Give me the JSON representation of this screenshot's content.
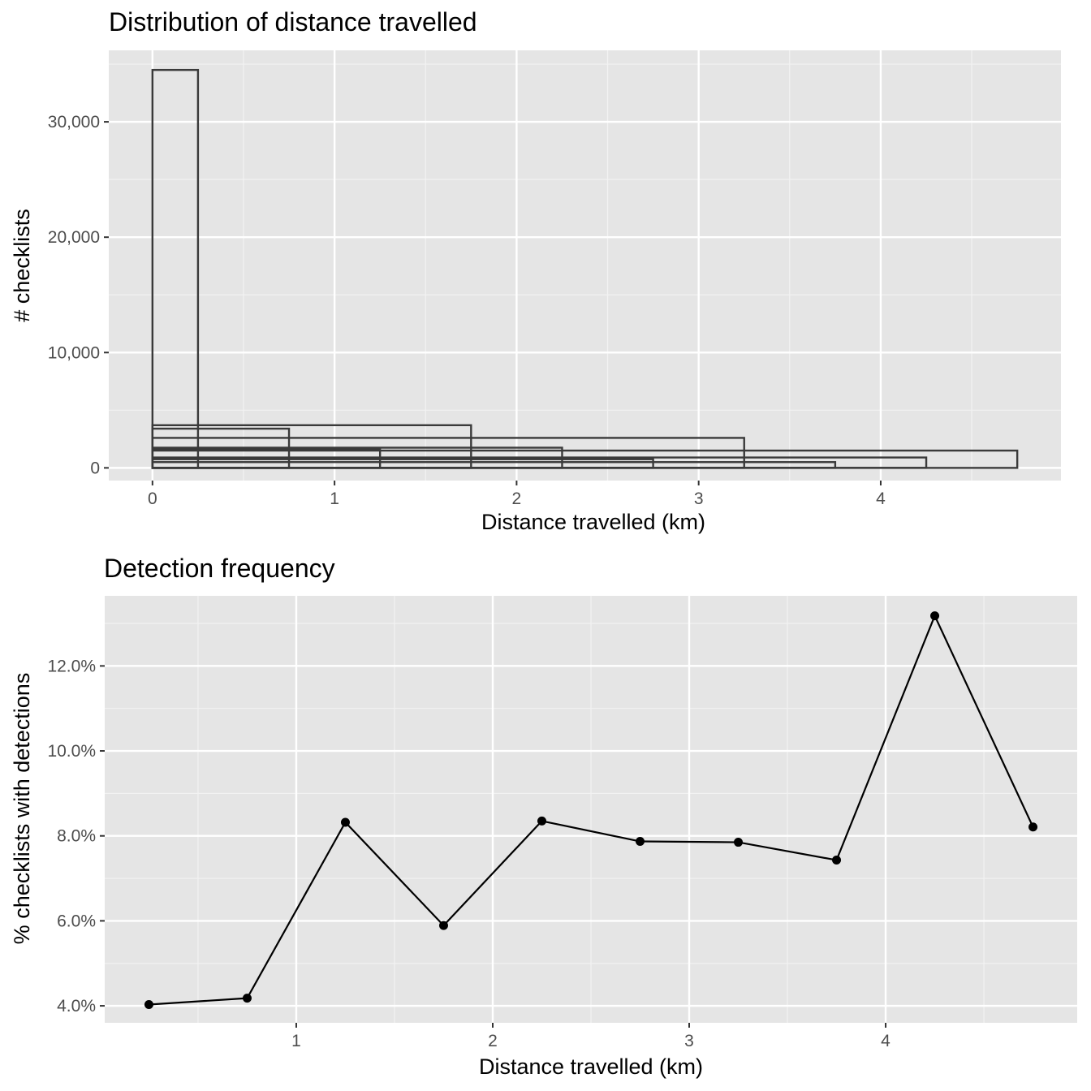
{
  "chart_data": [
    {
      "type": "histogram",
      "title": "Distribution of distance travelled",
      "xlabel": "Distance travelled (km)",
      "ylabel": "# checklists",
      "xlim": [
        -0.24,
        4.99
      ],
      "ylim": [
        -1100,
        36200
      ],
      "x_ticks": [
        0,
        1,
        2,
        3,
        4
      ],
      "x_tick_labels": [
        "0",
        "1",
        "2",
        "3",
        "4"
      ],
      "y_ticks": [
        0,
        10000,
        20000,
        30000
      ],
      "y_tick_labels": [
        "0",
        "10,000",
        "20,000",
        "30,000"
      ],
      "grid": true,
      "legend": "none",
      "bars": [
        {
          "x_start": 0,
          "x_end": 0.25,
          "count": 34500
        },
        {
          "x_start": 0,
          "x_end": 1.75,
          "count": 3700
        },
        {
          "x_start": 0,
          "x_end": 0.75,
          "count": 3400
        },
        {
          "x_start": 0,
          "x_end": 3.25,
          "count": 2600
        },
        {
          "x_start": 0,
          "x_end": 2.25,
          "count": 1750
        },
        {
          "x_start": 0,
          "x_end": 1.25,
          "count": 1650
        },
        {
          "x_start": 0,
          "x_end": 4.75,
          "count": 1500
        },
        {
          "x_start": 0,
          "x_end": 4.25,
          "count": 900
        },
        {
          "x_start": 0,
          "x_end": 2.75,
          "count": 750
        },
        {
          "x_start": 0,
          "x_end": 3.75,
          "count": 500
        }
      ]
    },
    {
      "type": "line",
      "title": "Detection frequency",
      "xlabel": "Distance travelled (km)",
      "ylabel": "% checklists with detections",
      "xlim": [
        0.025,
        4.975
      ],
      "ylim": [
        3.6,
        13.65
      ],
      "x_ticks": [
        1,
        2,
        3,
        4
      ],
      "x_tick_labels": [
        "1",
        "2",
        "3",
        "4"
      ],
      "y_ticks": [
        4,
        6,
        8,
        10,
        12
      ],
      "y_tick_labels": [
        "4.0%",
        "6.0%",
        "8.0%",
        "10.0%",
        "12.0%"
      ],
      "grid": true,
      "legend": "none",
      "series": [
        {
          "x": [
            0.25,
            0.75,
            1.25,
            1.75,
            2.25,
            2.75,
            3.25,
            3.75,
            4.25,
            4.75
          ],
          "values": [
            4.03,
            4.18,
            8.32,
            5.89,
            8.35,
            7.87,
            7.85,
            7.43,
            13.18,
            8.21
          ]
        }
      ]
    }
  ]
}
